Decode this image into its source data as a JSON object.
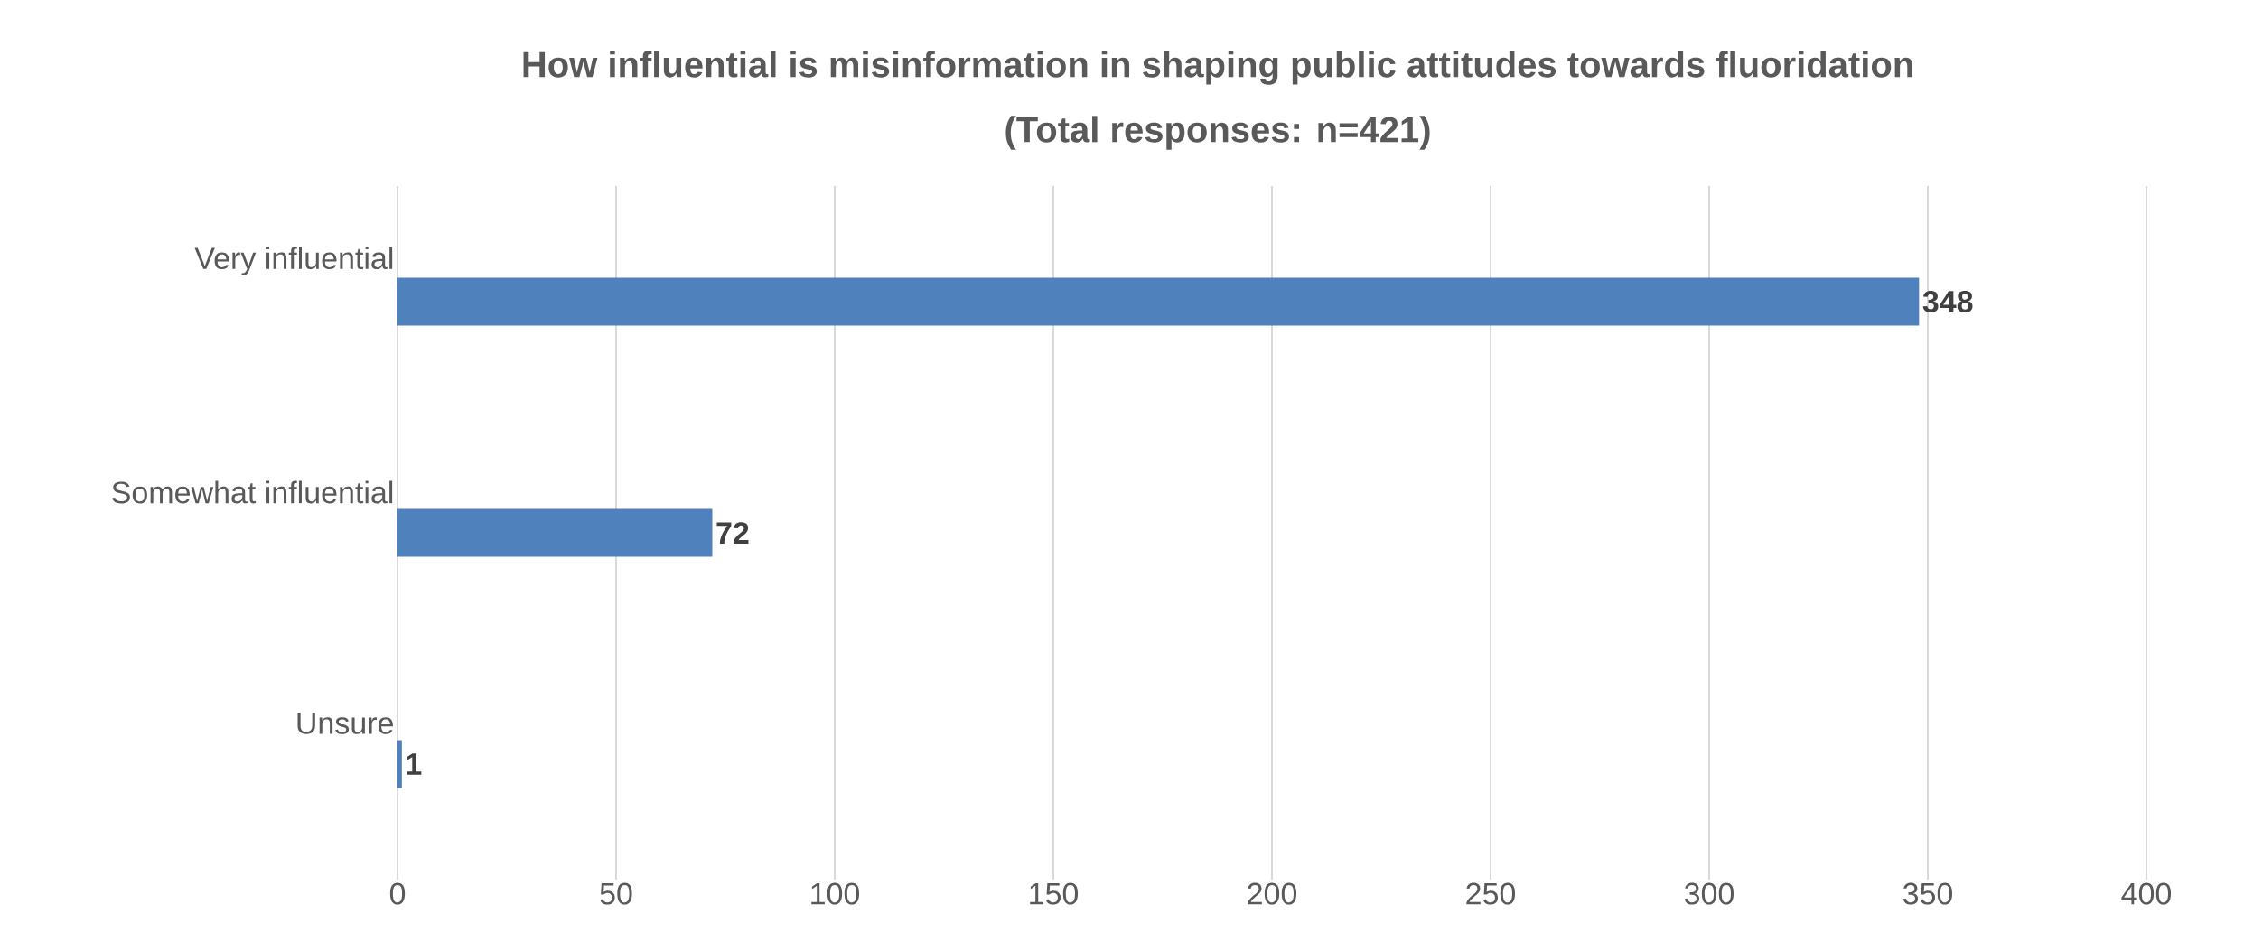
{
  "chart_data": {
    "type": "bar",
    "orientation": "horizontal",
    "title": "How influential is misinformation in shaping public attitudes towards fluoridation",
    "subtitle": "(Total responses: n=421)",
    "categories": [
      "Very influential",
      "Somewhat influential",
      "Unsure"
    ],
    "values": [
      348,
      72,
      1
    ],
    "color": "#4f81bd",
    "xlim": [
      0,
      400
    ],
    "xticks": [
      0,
      50,
      100,
      150,
      200,
      250,
      300,
      350,
      400
    ],
    "grid": "x",
    "data_labels": true
  }
}
